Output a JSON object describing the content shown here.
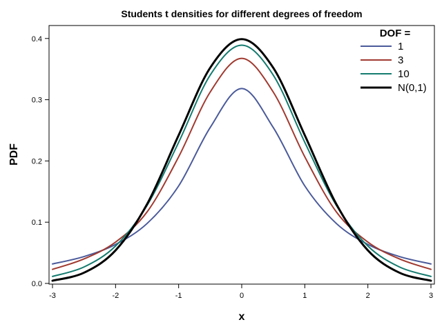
{
  "chart_data": {
    "type": "line",
    "title": "Students t densities for different degrees of freedom",
    "xlabel": "x",
    "ylabel": "PDF",
    "xlim": [
      -3,
      3
    ],
    "ylim": [
      0,
      0.42
    ],
    "x_ticks": [
      -3,
      -2,
      -1,
      0,
      1,
      2,
      3
    ],
    "y_ticks": [
      0.0,
      0.1,
      0.2,
      0.3,
      0.4
    ],
    "y_tick_labels": [
      "0.0",
      "0.1",
      "0.2",
      "0.3",
      "0.4"
    ],
    "grid": false,
    "legend": {
      "title": "DOF =",
      "placement": "top-right"
    },
    "x": [
      -3,
      -2.5,
      -2,
      -1.5,
      -1,
      -0.5,
      0,
      0.5,
      1,
      1.5,
      2,
      2.5,
      3
    ],
    "series": [
      {
        "name": "1",
        "color": "#4a5a9a",
        "stroke": 2,
        "values": [
          0.0318,
          0.0439,
          0.0637,
          0.0979,
          0.1592,
          0.2546,
          0.3183,
          0.2546,
          0.1592,
          0.0979,
          0.0637,
          0.0439,
          0.0318
        ]
      },
      {
        "name": "3",
        "color": "#a0392f",
        "stroke": 2,
        "values": [
          0.023,
          0.04,
          0.0675,
          0.1168,
          0.2067,
          0.3125,
          0.3676,
          0.3125,
          0.2067,
          0.1168,
          0.0675,
          0.04,
          0.023
        ]
      },
      {
        "name": "10",
        "color": "#137a6e",
        "stroke": 2,
        "values": [
          0.0114,
          0.0269,
          0.0611,
          0.1274,
          0.2304,
          0.3402,
          0.3891,
          0.3402,
          0.2304,
          0.1274,
          0.0611,
          0.0269,
          0.0114
        ]
      },
      {
        "name": "N(0,1)",
        "color": "#000000",
        "stroke": 3,
        "values": [
          0.0044,
          0.0175,
          0.054,
          0.1295,
          0.242,
          0.3521,
          0.3989,
          0.3521,
          0.242,
          0.1295,
          0.054,
          0.0175,
          0.0044
        ]
      }
    ]
  }
}
